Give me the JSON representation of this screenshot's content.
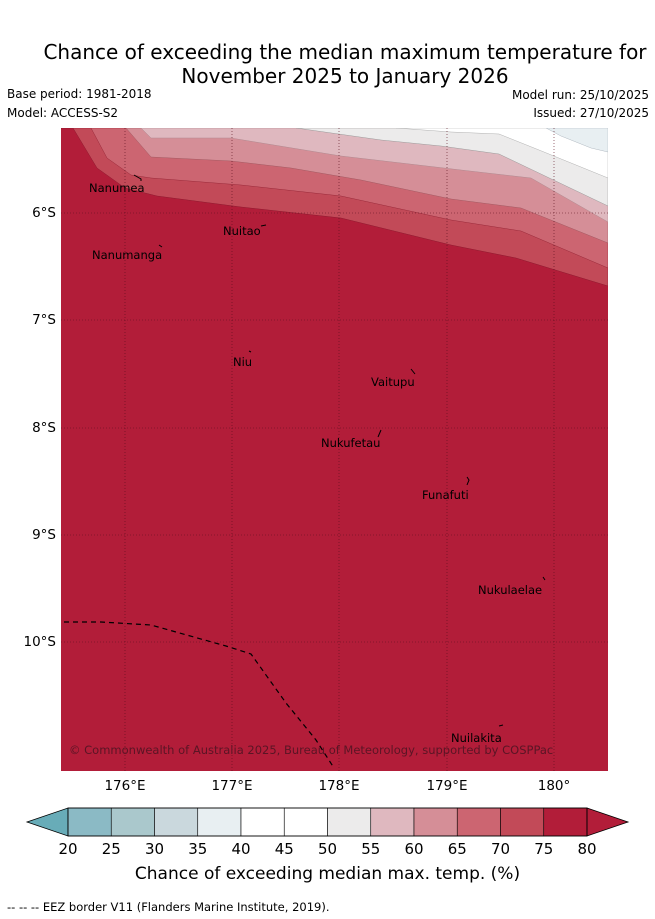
{
  "header": {
    "title_line1": "Chance of exceeding the median maximum temperature for",
    "title_line2": "November 2025 to January 2026",
    "base_period": "Base period: 1981-2018",
    "model": "Model: ACCESS-S2",
    "model_run": "Model run: 25/10/2025",
    "issued": "Issued: 27/10/2025"
  },
  "map": {
    "lat_labels": [
      "6°S",
      "7°S",
      "8°S",
      "9°S",
      "10°S"
    ],
    "lon_labels": [
      "176°E",
      "177°E",
      "178°E",
      "179°E",
      "180°"
    ],
    "places": {
      "nanumea": "Nanumea",
      "nanumanga": "Nanumanga",
      "nuitao": "Nuitao",
      "niu": "Niu",
      "vaitupu": "Vaitupu",
      "nukufetau": "Nukufetau",
      "funafuti": "Funafuti",
      "nukulaelae": "Nukulaelae",
      "nuilakita": "Nuilakita"
    },
    "copyright": "© Commonwealth of Australia 2025, Bureau of Meteorology, supported by COSPPac"
  },
  "colorbar": {
    "ticks": [
      "20",
      "25",
      "30",
      "35",
      "40",
      "45",
      "50",
      "55",
      "60",
      "65",
      "70",
      "75",
      "80"
    ],
    "colors": [
      "#68acb8",
      "#8bbac5",
      "#aac8cc",
      "#cad8dd",
      "#e8eff2",
      "#ffffff",
      "#ffffff",
      "#ecebeb",
      "#dfb8bf",
      "#d58e97",
      "#cc6571",
      "#c24a58",
      "#b21d39"
    ],
    "title": "Chance of exceeding median max. temp. (%)"
  },
  "footer": {
    "legend_text": "--  --  -- EEZ border V11 (Flanders Marine Institute, 2019)."
  }
}
